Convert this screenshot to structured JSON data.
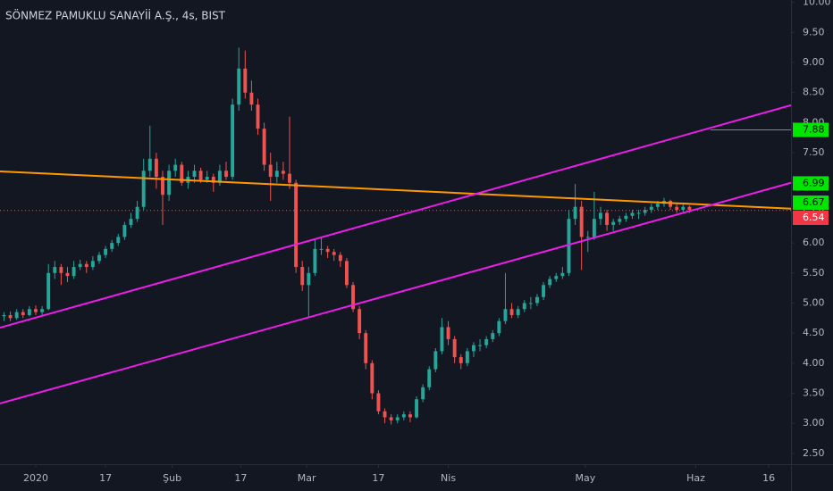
{
  "chart_data": {
    "type": "candlestick",
    "title": "SÖNMEZ PAMUKLU SANAYİİ A.Ş., 4s, BIST",
    "up_color": "#26a69a",
    "down_color": "#ef5350",
    "xlim": [
      -5.63,
      119
    ],
    "ylim": [
      2.32,
      10.04
    ],
    "yticks": [
      {
        "value": 2.5,
        "label": "2.50"
      },
      {
        "value": 3,
        "label": "3.00"
      },
      {
        "value": 3.5,
        "label": "3.50"
      },
      {
        "value": 4,
        "label": "4.00"
      },
      {
        "value": 4.5,
        "label": "4.50"
      },
      {
        "value": 5,
        "label": "5.00"
      },
      {
        "value": 5.5,
        "label": "5.50"
      },
      {
        "value": 6,
        "label": "6.00"
      },
      {
        "value": 6.5,
        "label": "6.50"
      },
      {
        "value": 7,
        "label": "7.00"
      },
      {
        "value": 7.5,
        "label": "7.50"
      },
      {
        "value": 8,
        "label": "8.00"
      },
      {
        "value": 8.5,
        "label": "8.50"
      },
      {
        "value": 9,
        "label": "9.00"
      },
      {
        "value": 9.5,
        "label": "9.50"
      },
      {
        "value": 10,
        "label": "10.00"
      }
    ],
    "xticks": [
      {
        "value": 0,
        "label": "2020"
      },
      {
        "value": 11,
        "label": "17"
      },
      {
        "value": 21.5,
        "label": "Şub"
      },
      {
        "value": 32.3,
        "label": "17"
      },
      {
        "value": 42.7,
        "label": "Mar"
      },
      {
        "value": 54,
        "label": "17"
      },
      {
        "value": 65,
        "label": "Nis"
      },
      {
        "value": 86.6,
        "label": "May"
      },
      {
        "value": 104,
        "label": "Haz"
      },
      {
        "value": 115.5,
        "label": "16"
      }
    ],
    "x": [
      -5,
      -4,
      -3,
      -2,
      -1,
      0,
      1,
      2,
      3,
      4,
      5,
      6,
      7,
      8,
      9,
      10,
      11,
      12,
      13,
      14,
      15,
      16,
      17,
      18,
      19,
      20,
      21,
      22,
      23,
      24,
      25,
      26,
      27,
      28,
      29,
      30,
      31,
      32,
      33,
      34,
      35,
      36,
      37,
      38,
      39,
      40,
      41,
      42,
      43,
      44,
      45,
      46,
      47,
      48,
      49,
      50,
      51,
      52,
      53,
      54,
      55,
      56,
      57,
      58,
      59,
      60,
      61,
      62,
      63,
      64,
      65,
      66,
      67,
      68,
      69,
      70,
      71,
      72,
      73,
      74,
      75,
      76,
      77,
      78,
      79,
      80,
      81,
      82,
      83,
      84,
      85,
      86,
      87,
      88,
      89,
      90,
      91,
      92,
      93,
      94,
      95,
      96,
      97,
      98,
      99,
      100,
      101,
      102,
      103
    ],
    "ohlc": [
      [
        4.78,
        4.85,
        4.7,
        4.8
      ],
      [
        4.8,
        4.86,
        4.7,
        4.75
      ],
      [
        4.75,
        4.9,
        4.72,
        4.85
      ],
      [
        4.85,
        4.9,
        4.75,
        4.8
      ],
      [
        4.8,
        4.95,
        4.78,
        4.9
      ],
      [
        4.9,
        4.96,
        4.8,
        4.85
      ],
      [
        4.85,
        4.95,
        4.8,
        4.9
      ],
      [
        4.9,
        5.65,
        4.88,
        5.5
      ],
      [
        5.5,
        5.7,
        5.4,
        5.6
      ],
      [
        5.6,
        5.65,
        5.3,
        5.5
      ],
      [
        5.5,
        5.6,
        5.35,
        5.45
      ],
      [
        5.45,
        5.7,
        5.4,
        5.6
      ],
      [
        5.6,
        5.72,
        5.55,
        5.65
      ],
      [
        5.65,
        5.7,
        5.5,
        5.6
      ],
      [
        5.6,
        5.78,
        5.55,
        5.7
      ],
      [
        5.7,
        5.85,
        5.65,
        5.8
      ],
      [
        5.8,
        5.95,
        5.75,
        5.9
      ],
      [
        5.9,
        6.05,
        5.85,
        6.0
      ],
      [
        6.0,
        6.15,
        5.95,
        6.1
      ],
      [
        6.1,
        6.35,
        6.05,
        6.3
      ],
      [
        6.3,
        6.5,
        6.25,
        6.4
      ],
      [
        6.4,
        6.7,
        6.35,
        6.6
      ],
      [
        6.6,
        7.4,
        6.55,
        7.2
      ],
      [
        7.2,
        7.95,
        7.1,
        7.4
      ],
      [
        7.4,
        7.5,
        6.9,
        7.1
      ],
      [
        7.1,
        7.2,
        6.3,
        6.8
      ],
      [
        6.8,
        7.3,
        6.7,
        7.2
      ],
      [
        7.2,
        7.4,
        7.1,
        7.3
      ],
      [
        7.3,
        7.35,
        6.95,
        7.0
      ],
      [
        7.0,
        7.2,
        6.9,
        7.1
      ],
      [
        7.1,
        7.3,
        7.0,
        7.2
      ],
      [
        7.2,
        7.25,
        7.0,
        7.05
      ],
      [
        7.05,
        7.2,
        7.0,
        7.1
      ],
      [
        7.1,
        7.15,
        6.85,
        7.0
      ],
      [
        7.0,
        7.3,
        6.95,
        7.2
      ],
      [
        7.2,
        7.35,
        7.05,
        7.1
      ],
      [
        7.1,
        8.4,
        7.05,
        8.3
      ],
      [
        8.3,
        9.25,
        8.2,
        8.9
      ],
      [
        8.9,
        9.2,
        8.4,
        8.5
      ],
      [
        8.5,
        8.7,
        8.2,
        8.3
      ],
      [
        8.3,
        8.4,
        7.8,
        7.9
      ],
      [
        7.9,
        8.0,
        7.2,
        7.3
      ],
      [
        7.3,
        7.5,
        6.7,
        7.1
      ],
      [
        7.1,
        7.35,
        7.0,
        7.2
      ],
      [
        7.2,
        7.35,
        7.05,
        7.15
      ],
      [
        7.15,
        8.1,
        6.9,
        7.0
      ],
      [
        7.0,
        7.05,
        5.5,
        5.6
      ],
      [
        5.6,
        5.7,
        5.2,
        5.3
      ],
      [
        5.3,
        5.6,
        4.75,
        5.5
      ],
      [
        5.5,
        6.05,
        5.45,
        5.9
      ],
      [
        5.9,
        6.1,
        5.8,
        5.9
      ],
      [
        5.9,
        5.95,
        5.75,
        5.85
      ],
      [
        5.85,
        5.9,
        5.7,
        5.8
      ],
      [
        5.8,
        5.85,
        5.6,
        5.7
      ],
      [
        5.7,
        5.75,
        5.25,
        5.3
      ],
      [
        5.3,
        5.35,
        4.85,
        4.9
      ],
      [
        4.9,
        4.95,
        4.4,
        4.5
      ],
      [
        4.5,
        4.55,
        3.9,
        4.0
      ],
      [
        4.0,
        4.05,
        3.4,
        3.5
      ],
      [
        3.5,
        3.55,
        3.15,
        3.2
      ],
      [
        3.2,
        3.25,
        3.0,
        3.1
      ],
      [
        3.1,
        3.15,
        2.98,
        3.05
      ],
      [
        3.05,
        3.15,
        3.0,
        3.1
      ],
      [
        3.1,
        3.2,
        3.05,
        3.15
      ],
      [
        3.15,
        3.2,
        3.02,
        3.1
      ],
      [
        3.1,
        3.45,
        3.08,
        3.4
      ],
      [
        3.4,
        3.65,
        3.35,
        3.6
      ],
      [
        3.6,
        3.95,
        3.55,
        3.9
      ],
      [
        3.9,
        4.25,
        3.85,
        4.2
      ],
      [
        4.2,
        4.75,
        4.15,
        4.6
      ],
      [
        4.6,
        4.7,
        4.3,
        4.4
      ],
      [
        4.4,
        4.45,
        4.0,
        4.1
      ],
      [
        4.1,
        4.15,
        3.9,
        4.0
      ],
      [
        4.0,
        4.25,
        3.95,
        4.2
      ],
      [
        4.2,
        4.35,
        4.1,
        4.3
      ],
      [
        4.3,
        4.4,
        4.2,
        4.3
      ],
      [
        4.3,
        4.45,
        4.25,
        4.4
      ],
      [
        4.4,
        4.55,
        4.35,
        4.5
      ],
      [
        4.5,
        4.75,
        4.45,
        4.7
      ],
      [
        4.7,
        5.5,
        4.65,
        4.9
      ],
      [
        4.9,
        5.0,
        4.75,
        4.8
      ],
      [
        4.8,
        4.95,
        4.75,
        4.9
      ],
      [
        4.9,
        5.05,
        4.85,
        5.0
      ],
      [
        5.0,
        5.1,
        4.9,
        5.0
      ],
      [
        5.0,
        5.15,
        4.95,
        5.1
      ],
      [
        5.1,
        5.35,
        5.05,
        5.3
      ],
      [
        5.3,
        5.45,
        5.25,
        5.4
      ],
      [
        5.4,
        5.5,
        5.35,
        5.45
      ],
      [
        5.45,
        5.6,
        5.4,
        5.5
      ],
      [
        5.5,
        6.55,
        5.45,
        6.4
      ],
      [
        6.4,
        6.98,
        6.3,
        6.6
      ],
      [
        6.6,
        6.7,
        5.55,
        6.1
      ],
      [
        6.1,
        6.2,
        5.85,
        6.1
      ],
      [
        6.1,
        6.85,
        6.05,
        6.4
      ],
      [
        6.4,
        6.6,
        6.3,
        6.5
      ],
      [
        6.5,
        6.55,
        6.2,
        6.3
      ],
      [
        6.3,
        6.4,
        6.2,
        6.35
      ],
      [
        6.35,
        6.45,
        6.3,
        6.4
      ],
      [
        6.4,
        6.5,
        6.35,
        6.45
      ],
      [
        6.45,
        6.55,
        6.4,
        6.5
      ],
      [
        6.5,
        6.55,
        6.4,
        6.5
      ],
      [
        6.5,
        6.6,
        6.45,
        6.55
      ],
      [
        6.55,
        6.65,
        6.5,
        6.6
      ],
      [
        6.6,
        6.7,
        6.55,
        6.65
      ],
      [
        6.65,
        6.75,
        6.6,
        6.7
      ],
      [
        6.7,
        6.72,
        6.55,
        6.6
      ],
      [
        6.6,
        6.65,
        6.5,
        6.55
      ],
      [
        6.55,
        6.65,
        6.5,
        6.6
      ],
      [
        6.6,
        6.62,
        6.5,
        6.55
      ]
    ],
    "trendlines": [
      {
        "color": "#ff9800",
        "points": [
          [
            -5.63,
            7.19
          ],
          [
            119,
            6.57
          ]
        ]
      },
      {
        "color": "#e91ee9",
        "points": [
          [
            -5.63,
            4.59
          ],
          [
            119,
            8.29
          ]
        ]
      },
      {
        "color": "#e91ee9",
        "points": [
          [
            -5.63,
            3.33
          ],
          [
            119,
            7.0
          ]
        ]
      }
    ],
    "hlines": [
      {
        "value": 7.88,
        "from": 106.3,
        "color": "#00e600",
        "style": "solid"
      },
      {
        "value": 6.54,
        "from": -5.63,
        "color": "#ef5350",
        "style": "dotted"
      }
    ],
    "price_labels": [
      {
        "value": 7.88,
        "color": "#00e600",
        "text_color": "#000000"
      },
      {
        "value": 6.99,
        "color": "#00e600",
        "text_color": "#000000"
      },
      {
        "value": 6.67,
        "color": "#00e600",
        "text_color": "#000000"
      },
      {
        "value": 6.54,
        "color": "#f23645",
        "text_color": "#ffffff"
      }
    ]
  }
}
